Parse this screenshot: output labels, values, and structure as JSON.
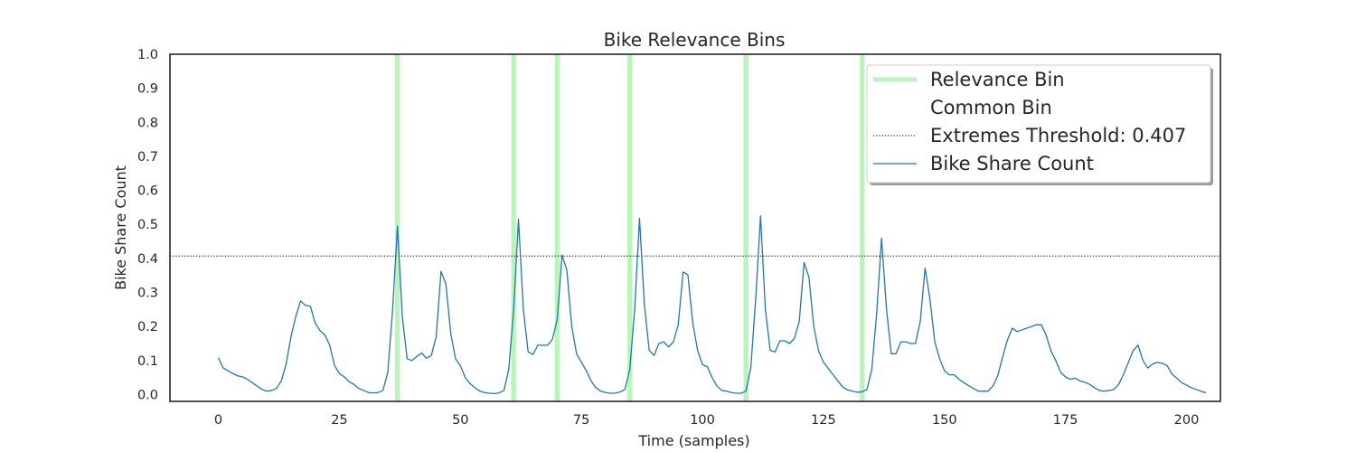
{
  "chart_data": {
    "type": "line",
    "title": "Bike Relevance Bins",
    "xlabel": "Time (samples)",
    "ylabel": "Bike Share Count",
    "xlim": [
      -10,
      207
    ],
    "ylim": [
      -0.02,
      1.0
    ],
    "xticks": [
      0,
      25,
      50,
      75,
      100,
      125,
      150,
      175,
      200
    ],
    "yticks": [
      0.0,
      0.1,
      0.2,
      0.3,
      0.4,
      0.5,
      0.6,
      0.7,
      0.8,
      0.9,
      1.0
    ],
    "threshold": 0.407,
    "relevance_bins": [
      37,
      61,
      70,
      85,
      109,
      133
    ],
    "legend": {
      "placement": "top-right",
      "entries": [
        {
          "label": "Relevance Bin",
          "style": "band",
          "color": "#b8f5b8"
        },
        {
          "label": "Common Bin",
          "style": "none",
          "color": "#ffffff"
        },
        {
          "label": "Extremes Threshold: 0.407",
          "style": "dotted",
          "color": "#262626"
        },
        {
          "label": "Bike Share Count",
          "style": "line",
          "color": "#1f77b4"
        }
      ]
    },
    "grid": false,
    "colors": {
      "series": "#1f77b4",
      "band": "#b8f5b8",
      "threshold": "#262626",
      "frame": "#262626"
    },
    "series": [
      {
        "name": "Bike Share Count",
        "x_start": 0,
        "x_step": 1,
        "values": [
          0.108,
          0.078,
          0.07,
          0.062,
          0.055,
          0.052,
          0.045,
          0.035,
          0.025,
          0.015,
          0.01,
          0.012,
          0.018,
          0.04,
          0.09,
          0.17,
          0.23,
          0.275,
          0.262,
          0.26,
          0.21,
          0.188,
          0.175,
          0.145,
          0.085,
          0.062,
          0.052,
          0.038,
          0.03,
          0.018,
          0.012,
          0.006,
          0.005,
          0.006,
          0.012,
          0.065,
          0.25,
          0.495,
          0.23,
          0.105,
          0.1,
          0.112,
          0.122,
          0.107,
          0.115,
          0.17,
          0.362,
          0.325,
          0.18,
          0.105,
          0.085,
          0.05,
          0.032,
          0.02,
          0.01,
          0.006,
          0.004,
          0.003,
          0.005,
          0.012,
          0.075,
          0.25,
          0.515,
          0.25,
          0.125,
          0.118,
          0.145,
          0.145,
          0.145,
          0.162,
          0.22,
          0.41,
          0.365,
          0.2,
          0.12,
          0.095,
          0.07,
          0.04,
          0.02,
          0.01,
          0.006,
          0.004,
          0.004,
          0.008,
          0.015,
          0.075,
          0.25,
          0.518,
          0.265,
          0.13,
          0.115,
          0.15,
          0.155,
          0.14,
          0.155,
          0.205,
          0.36,
          0.352,
          0.21,
          0.13,
          0.088,
          0.082,
          0.05,
          0.025,
          0.012,
          0.01,
          0.006,
          0.004,
          0.004,
          0.01,
          0.08,
          0.28,
          0.525,
          0.25,
          0.13,
          0.125,
          0.158,
          0.158,
          0.15,
          0.165,
          0.215,
          0.388,
          0.345,
          0.2,
          0.128,
          0.095,
          0.077,
          0.058,
          0.04,
          0.022,
          0.014,
          0.01,
          0.007,
          0.008,
          0.015,
          0.075,
          0.24,
          0.46,
          0.255,
          0.12,
          0.12,
          0.155,
          0.155,
          0.15,
          0.15,
          0.215,
          0.372,
          0.28,
          0.155,
          0.105,
          0.07,
          0.058,
          0.058,
          0.045,
          0.035,
          0.026,
          0.018,
          0.01,
          0.01,
          0.01,
          0.025,
          0.055,
          0.11,
          0.16,
          0.195,
          0.185,
          0.19,
          0.195,
          0.2,
          0.205,
          0.205,
          0.175,
          0.128,
          0.1,
          0.065,
          0.052,
          0.045,
          0.048,
          0.04,
          0.036,
          0.03,
          0.02,
          0.012,
          0.01,
          0.012,
          0.015,
          0.03,
          0.06,
          0.095,
          0.13,
          0.145,
          0.1,
          0.078,
          0.09,
          0.095,
          0.092,
          0.085,
          0.06,
          0.048,
          0.035,
          0.028,
          0.02,
          0.015,
          0.01,
          0.005
        ]
      }
    ]
  }
}
